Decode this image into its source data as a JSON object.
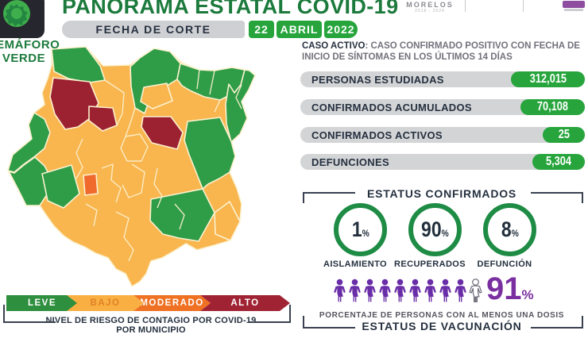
{
  "header": {
    "title": "PANORAMA ESTATAL COVID-19",
    "semaforo_line1": "SEMÁFORO",
    "semaforo_line2": "VERDE",
    "fecha_label": "FECHA DE CORTE",
    "fecha_day": "22",
    "fecha_month": "ABRIL",
    "fecha_year": "2022",
    "gov_logo_name": "MORELOS",
    "gov_logo_sub": "2018 - 2024"
  },
  "caso_activo": {
    "label": "CASO ACTIVO",
    "text": ": CASO CONFIRMADO POSITIVO CON FECHA DE INICIO DE SÍNTOMAS EN LOS ÚLTIMOS 14 DÍAS"
  },
  "stats": [
    {
      "label": "PERSONAS ESTUDIADAS",
      "value": "312,015"
    },
    {
      "label": "CONFIRMADOS ACUMULADOS",
      "value": "70,108"
    },
    {
      "label": "CONFIRMADOS ACTIVOS",
      "value": "25"
    },
    {
      "label": "DEFUNCIONES",
      "value": "5,304"
    }
  ],
  "estatus_confirmados": {
    "title": "ESTATUS CONFIRMADOS",
    "items": [
      {
        "pct": "1",
        "label": "AISLAMIENTO"
      },
      {
        "pct": "90",
        "label": "RECUPERADOS"
      },
      {
        "pct": "8",
        "label": "DEFUNCIÓN"
      }
    ]
  },
  "vacunacion": {
    "pct": "91",
    "icons_filled": 9,
    "icons_total": 10,
    "caption": "PORCENTAJE DE PERSONAS CON AL MENOS UNA DOSIS",
    "title": "ESTATUS DE VACUNACIÓN"
  },
  "legend": {
    "items": [
      {
        "label": "LEVE",
        "color": "#2e8f3f"
      },
      {
        "label": "BAJO",
        "color": "#f9af42"
      },
      {
        "label": "MODERADO",
        "color": "#ef7123"
      },
      {
        "label": "ALTO",
        "color": "#a02334"
      }
    ],
    "caption_prefix": "NIVEL DE RIESGO DE CONTAGIO POR ",
    "caption_bold": "COVID-19",
    "caption_line2": "POR MUNICIPIO"
  },
  "map": {
    "risk_colors": {
      "leve": "#2f9c47",
      "bajo": "#f9b54e",
      "moderado": "#f16a2d",
      "alto": "#9d2231"
    }
  },
  "misc": {
    "percent": "%"
  }
}
